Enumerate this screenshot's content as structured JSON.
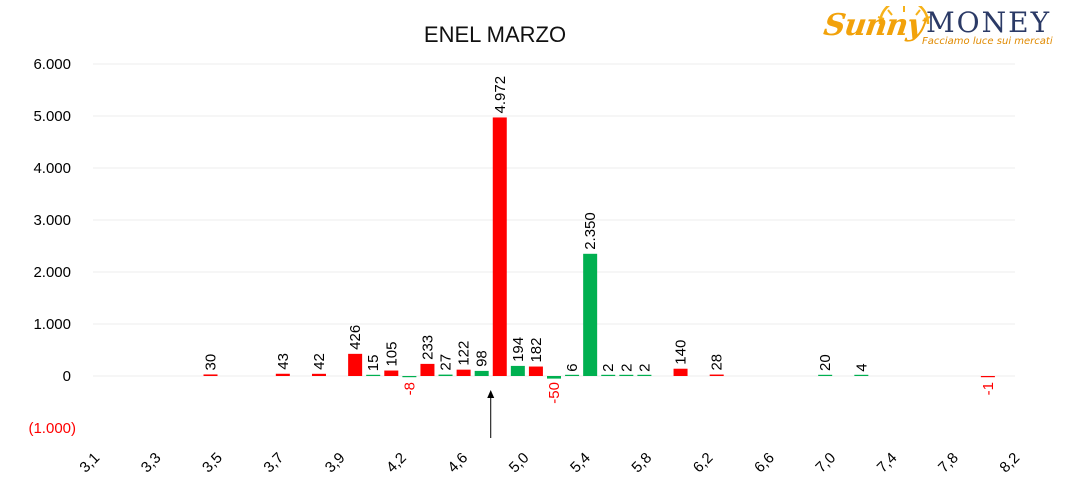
{
  "logo": {
    "brand_part1": "Sunny",
    "brand_part2": "MONEY",
    "tagline": "Facciamo luce sui mercati"
  },
  "chart_data": {
    "type": "bar",
    "title": "ENEL MARZO",
    "xlabel": "",
    "ylabel": "",
    "ylim": [
      -1000,
      6000
    ],
    "xlim": [
      3.1,
      8.2
    ],
    "y_ticks": [
      -1000,
      0,
      1000,
      2000,
      3000,
      4000,
      5000,
      6000
    ],
    "y_tick_labels": [
      "(1.000)",
      "0",
      "1.000",
      "2.000",
      "3.000",
      "4.000",
      "5.000",
      "6.000"
    ],
    "x_tick_labels": [
      "3,1",
      "3,3",
      "3,5",
      "3,7",
      "3,9",
      "4,2",
      "4,6",
      "5,0",
      "5,4",
      "5,8",
      "6,2",
      "6,6",
      "7,0",
      "7,4",
      "7,8",
      "8,2"
    ],
    "grid": true,
    "legend": "none",
    "colors": {
      "red": "#ff0000",
      "green": "#00b050",
      "negative_label": "#ff0000"
    },
    "bars": [
      {
        "x": 3.75,
        "value": 30,
        "label": "30",
        "color": "red"
      },
      {
        "x": 4.15,
        "value": 43,
        "label": "43",
        "color": "red"
      },
      {
        "x": 4.35,
        "value": 42,
        "label": "42",
        "color": "red"
      },
      {
        "x": 4.55,
        "value": 426,
        "label": "426",
        "color": "red"
      },
      {
        "x": 4.65,
        "value": 15,
        "label": "15",
        "color": "green"
      },
      {
        "x": 4.75,
        "value": 105,
        "label": "105",
        "color": "red"
      },
      {
        "x": 4.85,
        "value": -8,
        "label": "-8",
        "color": "green"
      },
      {
        "x": 4.95,
        "value": 233,
        "label": "233",
        "color": "red"
      },
      {
        "x": 5.05,
        "value": 27,
        "label": "27",
        "color": "green"
      },
      {
        "x": 5.15,
        "value": 122,
        "label": "122",
        "color": "red"
      },
      {
        "x": 5.25,
        "value": 98,
        "label": "98",
        "color": "green"
      },
      {
        "x": 5.35,
        "value": 4972,
        "label": "4.972",
        "color": "red"
      },
      {
        "x": 5.45,
        "value": 194,
        "label": "194",
        "color": "green"
      },
      {
        "x": 5.55,
        "value": 182,
        "label": "182",
        "color": "red"
      },
      {
        "x": 5.65,
        "value": -50,
        "label": "-50",
        "color": "green"
      },
      {
        "x": 5.75,
        "value": 6,
        "label": "6",
        "color": "green"
      },
      {
        "x": 5.85,
        "value": 2350,
        "label": "2.350",
        "color": "green"
      },
      {
        "x": 5.95,
        "value": 2,
        "label": "2",
        "color": "green"
      },
      {
        "x": 6.05,
        "value": 2,
        "label": "2",
        "color": "green"
      },
      {
        "x": 6.15,
        "value": 2,
        "label": "2",
        "color": "green"
      },
      {
        "x": 6.35,
        "value": 140,
        "label": "140",
        "color": "red"
      },
      {
        "x": 6.55,
        "value": 28,
        "label": "28",
        "color": "red"
      },
      {
        "x": 7.15,
        "value": 20,
        "label": "20",
        "color": "green"
      },
      {
        "x": 7.35,
        "value": 4,
        "label": "4",
        "color": "green"
      },
      {
        "x": 8.05,
        "value": -1,
        "label": "-1",
        "color": "red"
      }
    ],
    "annotation": {
      "type": "arrow-up",
      "x": 5.3
    }
  }
}
